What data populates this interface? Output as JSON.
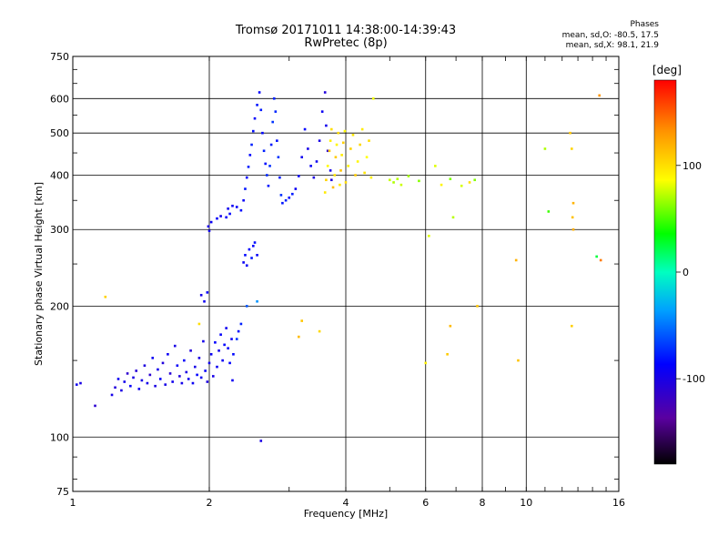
{
  "header": {
    "title_line1": "Tromsø 20171011 14:38:00-14:39:43",
    "title_line2": "RwPretec (8p)",
    "stats_title": "Phases",
    "stats_line1": "mean, sd,O: -80.5, 17.5",
    "stats_line2": "mean, sd,X:  98.1, 21.9"
  },
  "colorbar": {
    "label": "[deg]",
    "range": [
      -180,
      180
    ],
    "ticks": [
      100,
      0,
      -100
    ],
    "tick_labels": [
      "100",
      "0",
      "-100"
    ]
  },
  "chart_data": {
    "type": "scatter",
    "title": "Tromsø 20171011 14:38:00-14:39:43",
    "subtitle": "RwPretec (8p)",
    "xlabel": "Frequency [MHz]",
    "ylabel": "Stationary phase Virtual Height [km]",
    "xscale": "log",
    "yscale": "log",
    "xlim": [
      1,
      16
    ],
    "ylim": [
      75,
      750
    ],
    "xticks": [
      1,
      2,
      4,
      6,
      8,
      10,
      16
    ],
    "xtick_labels": [
      "1",
      "2",
      "4",
      "6",
      "8",
      "10",
      "16"
    ],
    "yticks": [
      75,
      100,
      200,
      300,
      400,
      500,
      600,
      750
    ],
    "ytick_labels": [
      "75",
      "100",
      "200",
      "300",
      "400",
      "500",
      "600",
      "750"
    ],
    "grid": true,
    "color_variable": "phase [deg]",
    "series": [
      {
        "mode": "O",
        "points": [
          [
            1.02,
            132,
            -95
          ],
          [
            1.04,
            133,
            -100
          ],
          [
            1.12,
            118,
            -110
          ],
          [
            1.22,
            125,
            -98
          ],
          [
            1.24,
            130,
            -105
          ],
          [
            1.26,
            136,
            -92
          ],
          [
            1.28,
            128,
            -100
          ],
          [
            1.3,
            134,
            -96
          ],
          [
            1.32,
            140,
            -112
          ],
          [
            1.34,
            131,
            -90
          ],
          [
            1.36,
            137,
            -100
          ],
          [
            1.38,
            142,
            -108
          ],
          [
            1.4,
            129,
            -94
          ],
          [
            1.42,
            135,
            -99
          ],
          [
            1.44,
            146,
            -103
          ],
          [
            1.46,
            133,
            -97
          ],
          [
            1.48,
            139,
            -110
          ],
          [
            1.5,
            152,
            -92
          ],
          [
            1.52,
            131,
            -101
          ],
          [
            1.54,
            143,
            -96
          ],
          [
            1.56,
            136,
            -88
          ],
          [
            1.58,
            148,
            -104
          ],
          [
            1.6,
            132,
            -99
          ],
          [
            1.62,
            155,
            -92
          ],
          [
            1.64,
            140,
            -108
          ],
          [
            1.66,
            134,
            -95
          ],
          [
            1.68,
            162,
            -100
          ],
          [
            1.7,
            146,
            -90
          ],
          [
            1.72,
            138,
            -103
          ],
          [
            1.74,
            133,
            -97
          ],
          [
            1.76,
            150,
            -88
          ],
          [
            1.78,
            141,
            -101
          ],
          [
            1.8,
            136,
            -94
          ],
          [
            1.82,
            158,
            -105
          ],
          [
            1.84,
            133,
            -92
          ],
          [
            1.86,
            145,
            -99
          ],
          [
            1.88,
            139,
            -86
          ],
          [
            1.9,
            152,
            -101
          ],
          [
            1.92,
            137,
            -93
          ],
          [
            1.94,
            166,
            -97
          ],
          [
            1.96,
            142,
            -89
          ],
          [
            1.98,
            134,
            -102
          ],
          [
            2.0,
            148,
            -95
          ],
          [
            2.02,
            155,
            -91
          ],
          [
            2.04,
            138,
            -99
          ],
          [
            2.06,
            165,
            -86
          ],
          [
            2.08,
            145,
            -93
          ],
          [
            2.1,
            158,
            -97
          ],
          [
            2.12,
            172,
            -88
          ],
          [
            2.14,
            150,
            -92
          ],
          [
            2.16,
            163,
            -85
          ],
          [
            2.18,
            178,
            -94
          ],
          [
            2.2,
            160,
            -90
          ],
          [
            2.22,
            148,
            -86
          ],
          [
            2.24,
            168,
            -92
          ],
          [
            2.26,
            155,
            -84
          ],
          [
            1.92,
            212,
            -98
          ],
          [
            1.95,
            205,
            -94
          ],
          [
            1.98,
            215,
            -90
          ],
          [
            1.99,
            305,
            -100
          ],
          [
            2.0,
            298,
            -95
          ],
          [
            2.02,
            312,
            -92
          ],
          [
            2.08,
            318,
            -88
          ],
          [
            2.12,
            322,
            -96
          ],
          [
            2.18,
            320,
            -90
          ],
          [
            2.2,
            335,
            -94
          ],
          [
            2.22,
            326,
            -85
          ],
          [
            2.25,
            340,
            -92
          ],
          [
            2.3,
            338,
            -88
          ],
          [
            2.35,
            332,
            -83
          ],
          [
            2.38,
            350,
            -90
          ],
          [
            2.4,
            372,
            -80
          ],
          [
            2.42,
            395,
            -86
          ],
          [
            2.44,
            418,
            -78
          ],
          [
            2.46,
            445,
            -84
          ],
          [
            2.48,
            470,
            -76
          ],
          [
            2.5,
            505,
            -82
          ],
          [
            2.52,
            540,
            -88
          ],
          [
            2.55,
            580,
            -80
          ],
          [
            2.58,
            620,
            -86
          ],
          [
            2.6,
            565,
            -78
          ],
          [
            2.62,
            500,
            -84
          ],
          [
            2.64,
            455,
            -76
          ],
          [
            2.66,
            425,
            -82
          ],
          [
            2.68,
            400,
            -74
          ],
          [
            2.7,
            378,
            -80
          ],
          [
            2.72,
            420,
            -72
          ],
          [
            2.74,
            470,
            -78
          ],
          [
            2.76,
            530,
            -70
          ],
          [
            2.78,
            600,
            -76
          ],
          [
            2.8,
            560,
            -74
          ],
          [
            2.82,
            480,
            -82
          ],
          [
            2.84,
            440,
            -70
          ],
          [
            2.86,
            395,
            -78
          ],
          [
            2.88,
            360,
            -72
          ],
          [
            2.9,
            345,
            -80
          ],
          [
            2.95,
            350,
            -76
          ],
          [
            3.0,
            355,
            -84
          ],
          [
            3.05,
            362,
            -78
          ],
          [
            3.1,
            372,
            -92
          ],
          [
            3.15,
            398,
            -88
          ],
          [
            3.2,
            440,
            -94
          ],
          [
            3.25,
            510,
            -86
          ],
          [
            3.3,
            460,
            -98
          ],
          [
            3.35,
            420,
            -90
          ],
          [
            3.4,
            395,
            -102
          ],
          [
            3.45,
            430,
            -94
          ],
          [
            3.5,
            480,
            -100
          ],
          [
            3.55,
            560,
            -92
          ],
          [
            3.6,
            620,
            -104
          ],
          [
            3.62,
            520,
            -96
          ],
          [
            3.65,
            455,
            -108
          ],
          [
            3.7,
            410,
            -98
          ],
          [
            3.72,
            390,
            -104
          ],
          [
            2.38,
            252,
            -92
          ],
          [
            2.4,
            262,
            -84
          ],
          [
            2.42,
            248,
            -90
          ],
          [
            2.45,
            270,
            -86
          ],
          [
            2.48,
            258,
            -80
          ],
          [
            2.5,
            275,
            -88
          ],
          [
            2.52,
            280,
            -82
          ],
          [
            2.55,
            262,
            -90
          ],
          [
            2.3,
            168,
            -70
          ],
          [
            2.32,
            175,
            -84
          ],
          [
            2.35,
            182,
            -76
          ],
          [
            2.25,
            135,
            -92
          ],
          [
            2.6,
            98,
            -100
          ],
          [
            2.42,
            200,
            -60
          ],
          [
            2.55,
            205,
            -40
          ]
        ]
      },
      {
        "mode": "X",
        "points": [
          [
            3.6,
            365,
            95
          ],
          [
            3.62,
            390,
            105
          ],
          [
            3.65,
            420,
            88
          ],
          [
            3.68,
            455,
            110
          ],
          [
            3.7,
            480,
            92
          ],
          [
            3.72,
            510,
            100
          ],
          [
            3.75,
            375,
            115
          ],
          [
            3.78,
            400,
            98
          ],
          [
            3.8,
            440,
            108
          ],
          [
            3.82,
            470,
            90
          ],
          [
            3.85,
            500,
            102
          ],
          [
            3.88,
            380,
            96
          ],
          [
            3.9,
            410,
            112
          ],
          [
            3.92,
            445,
            94
          ],
          [
            3.95,
            475,
            106
          ],
          [
            3.98,
            505,
            88
          ],
          [
            4.0,
            385,
            100
          ],
          [
            4.05,
            420,
            92
          ],
          [
            4.1,
            460,
            104
          ],
          [
            4.15,
            495,
            96
          ],
          [
            4.2,
            400,
            108
          ],
          [
            4.25,
            430,
            90
          ],
          [
            4.3,
            470,
            102
          ],
          [
            4.35,
            510,
            94
          ],
          [
            4.4,
            405,
            98
          ],
          [
            4.45,
            440,
            86
          ],
          [
            4.5,
            480,
            100
          ],
          [
            4.55,
            395,
            92
          ],
          [
            4.6,
            600,
            84
          ],
          [
            5.0,
            390,
            75
          ],
          [
            5.1,
            385,
            70
          ],
          [
            5.2,
            392,
            72
          ],
          [
            5.3,
            380,
            76
          ],
          [
            5.5,
            398,
            68
          ],
          [
            5.8,
            388,
            62
          ],
          [
            6.3,
            420,
            80
          ],
          [
            6.5,
            380,
            90
          ],
          [
            6.8,
            392,
            60
          ],
          [
            7.2,
            378,
            78
          ],
          [
            7.5,
            385,
            100
          ],
          [
            7.7,
            390,
            62
          ],
          [
            3.2,
            185,
            110
          ],
          [
            3.15,
            170,
            115
          ],
          [
            3.5,
            175,
            102
          ],
          [
            1.18,
            210,
            105
          ],
          [
            1.9,
            182,
            100
          ],
          [
            6.0,
            148,
            92
          ],
          [
            6.1,
            290,
            80
          ],
          [
            6.8,
            180,
            115
          ],
          [
            6.7,
            155,
            108
          ],
          [
            6.9,
            320,
            72
          ],
          [
            7.8,
            200,
            110
          ],
          [
            9.5,
            255,
            118
          ],
          [
            9.6,
            150,
            112
          ],
          [
            11.2,
            330,
            48
          ],
          [
            11.0,
            460,
            70
          ],
          [
            12.5,
            500,
            110
          ],
          [
            12.6,
            460,
            104
          ],
          [
            12.7,
            345,
            118
          ],
          [
            12.65,
            320,
            112
          ],
          [
            12.7,
            300,
            120
          ],
          [
            12.6,
            180,
            106
          ],
          [
            14.5,
            610,
            130
          ],
          [
            14.3,
            260,
            25
          ],
          [
            14.6,
            255,
            140
          ]
        ]
      }
    ]
  }
}
